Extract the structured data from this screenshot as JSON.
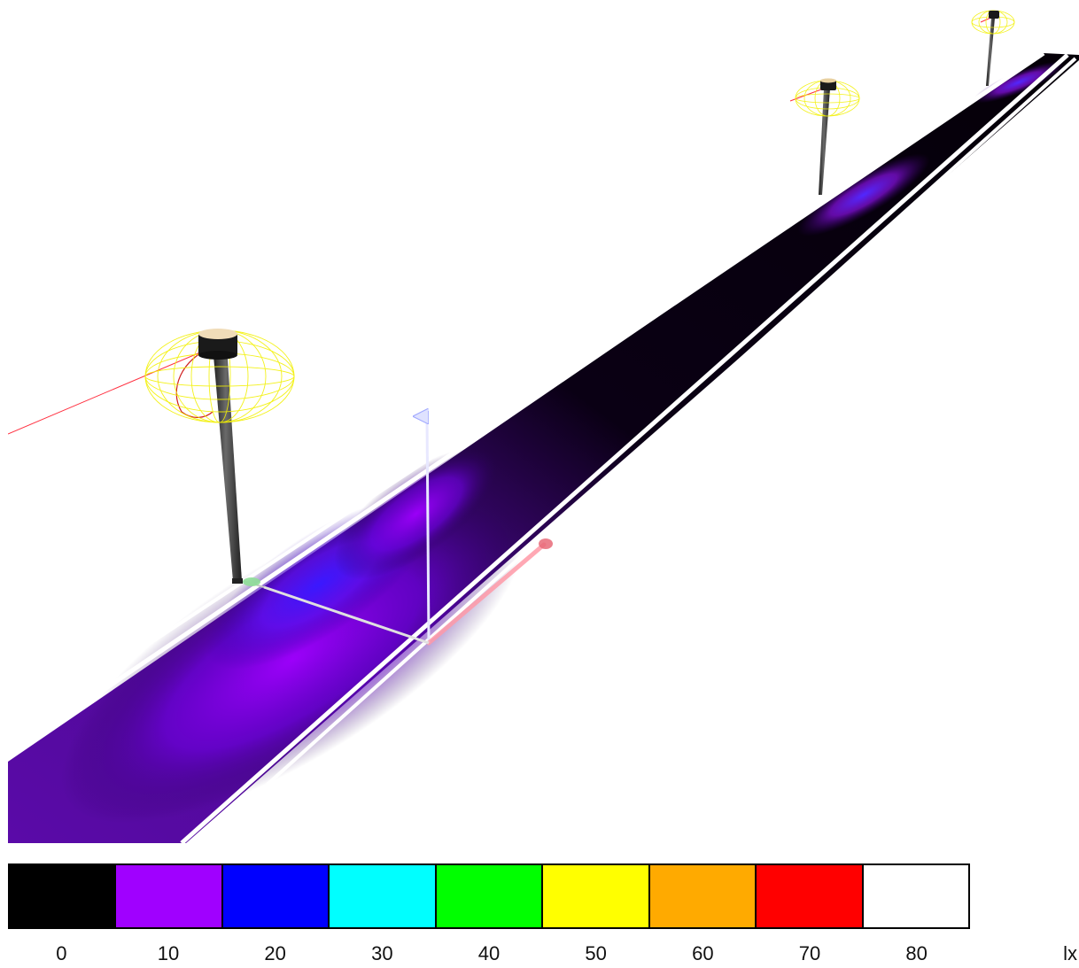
{
  "scene": {
    "colors": {
      "background": "#ffffff",
      "road_dark": "#000000",
      "road_glow_violet": "#a000ff",
      "road_glow_blue": "#4a10ff",
      "lane_line": "#ffffff",
      "luminaire_photometric_web": "#f0f000",
      "pole": "#3a3a3a",
      "axis_x": "#ff9aa8",
      "axis_y": "#9ae0a0",
      "axis_z": "#c8ccff",
      "aim_line": "#ff3040"
    },
    "objects": [
      {
        "name": "luminaire-pole-1",
        "icon": "street-light-icon"
      },
      {
        "name": "luminaire-pole-2",
        "icon": "street-light-icon"
      },
      {
        "name": "luminaire-pole-3",
        "icon": "street-light-icon"
      },
      {
        "name": "transform-gizmo",
        "icon": "move-axes-icon"
      }
    ]
  },
  "legend": {
    "unit": "lx",
    "bins": [
      {
        "value": "0",
        "color": "#000000"
      },
      {
        "value": "10",
        "color": "#a000ff"
      },
      {
        "value": "20",
        "color": "#0000ff"
      },
      {
        "value": "30",
        "color": "#00ffff"
      },
      {
        "value": "40",
        "color": "#00ff00"
      },
      {
        "value": "50",
        "color": "#ffff00"
      },
      {
        "value": "60",
        "color": "#ffaa00"
      },
      {
        "value": "70",
        "color": "#ff0000"
      },
      {
        "value": "80",
        "color": "#ffffff"
      }
    ]
  }
}
